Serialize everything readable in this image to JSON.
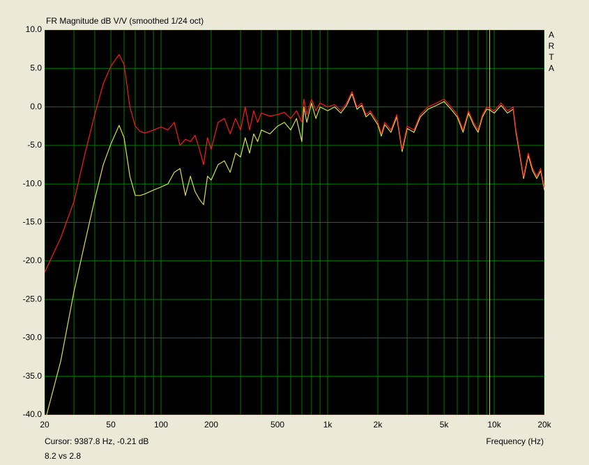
{
  "chart_data": {
    "type": "line",
    "title": "FR Magnitude dB V/V (smoothed 1/24 oct)",
    "side_label": [
      "A",
      "R",
      "T",
      "A"
    ],
    "cursor_text": "Cursor: 9387.8 Hz, -0.21 dB",
    "note": "8.2 vs 2.8",
    "xlabel": "Frequency (Hz)",
    "cursor_x": 9387.8,
    "cursor_color": "#c8c840",
    "xscale": "log",
    "grid": true,
    "grid_color": "#007a00",
    "background": "#000000",
    "xlim": [
      20,
      20000
    ],
    "ylim": [
      -40,
      10
    ],
    "xticks": [
      20,
      50,
      100,
      200,
      500,
      {
        "value": 1000,
        "label": "1k"
      },
      {
        "value": 2000,
        "label": "2k"
      },
      {
        "value": 5000,
        "label": "5k"
      },
      {
        "value": 10000,
        "label": "10k"
      },
      {
        "value": 20000,
        "label": "20k"
      }
    ],
    "xgrid": [
      30,
      40,
      60,
      70,
      80,
      90,
      300,
      400,
      600,
      700,
      800,
      900,
      3000,
      4000,
      6000,
      7000,
      8000,
      9000
    ],
    "yticks": [
      {
        "value": 10,
        "label": "10.0"
      },
      {
        "value": 5,
        "label": "5.0"
      },
      {
        "value": 0,
        "label": "0.0"
      },
      {
        "value": -5,
        "label": "-5.0"
      },
      {
        "value": -10,
        "label": "-10.0"
      },
      {
        "value": -15,
        "label": "-15.0"
      },
      {
        "value": -20,
        "label": "-20.0"
      },
      {
        "value": -25,
        "label": "-25.0"
      },
      {
        "value": -30,
        "label": "-30.0"
      },
      {
        "value": -35,
        "label": "-35.0"
      },
      {
        "value": -40,
        "label": "-40.0"
      }
    ],
    "x": [
      20,
      25,
      30,
      35,
      40,
      45,
      50,
      56,
      60,
      65,
      70,
      75,
      80,
      90,
      100,
      110,
      120,
      130,
      140,
      150,
      160,
      170,
      180,
      190,
      200,
      220,
      240,
      260,
      280,
      300,
      320,
      340,
      360,
      380,
      400,
      450,
      500,
      550,
      600,
      650,
      700,
      720,
      750,
      800,
      850,
      900,
      1000,
      1100,
      1200,
      1300,
      1400,
      1500,
      1600,
      1700,
      1800,
      2000,
      2100,
      2200,
      2400,
      2600,
      2800,
      3000,
      3300,
      3600,
      4000,
      4500,
      5000,
      5500,
      6000,
      6500,
      7000,
      7500,
      8000,
      8500,
      9000,
      9400,
      10000,
      11000,
      12000,
      13000,
      13500,
      14000,
      15000,
      16000,
      17000,
      18000,
      19000,
      20000
    ],
    "series": [
      {
        "color": "#d8e050",
        "values": [
          -41,
          -33,
          -24,
          -17.5,
          -12,
          -7.5,
          -4.8,
          -2.4,
          -4,
          -9,
          -11.5,
          -11.5,
          -11.3,
          -10.8,
          -10.4,
          -10,
          -8.5,
          -8,
          -11.5,
          -9,
          -11,
          -12,
          -12.7,
          -9,
          -9.5,
          -7.5,
          -7,
          -8.5,
          -6,
          -6.5,
          -4,
          -6,
          -3.5,
          -4.5,
          -3,
          -3.5,
          -2.5,
          -2,
          -3,
          -1.5,
          -4.5,
          0,
          -2,
          0.5,
          -1.5,
          0,
          -0.5,
          0,
          -0.8,
          0.2,
          1.7,
          -0.3,
          0.2,
          -1.3,
          -0.8,
          -2.3,
          -3.8,
          -2.3,
          -3.3,
          -1.3,
          -5.8,
          -2.8,
          -3.3,
          -1.3,
          -0.3,
          0.2,
          0.7,
          -0.3,
          -1.3,
          -3.3,
          -0.8,
          -2.3,
          -3.3,
          -1.3,
          -0.3,
          -0.4,
          -0.8,
          0.2,
          -0.8,
          -0.3,
          -3.3,
          -5.3,
          -9.3,
          -6.3,
          -8.3,
          -9.3,
          -8.3,
          -10.8
        ]
      },
      {
        "color": "#ff1a1a",
        "values": [
          -21.5,
          -17,
          -12.3,
          -6,
          -1,
          3,
          5.3,
          6.8,
          5.5,
          0,
          -2.5,
          -3.2,
          -3.4,
          -3,
          -2.6,
          -3,
          -2,
          -5,
          -4.2,
          -4.5,
          -3.7,
          -5.5,
          -7.5,
          -4,
          -5.5,
          -2,
          -1.5,
          -3.5,
          -1.5,
          -3,
          0,
          -3,
          -0.5,
          -2,
          -0.8,
          -1.2,
          -1,
          -0.7,
          -1.5,
          -0.5,
          -2,
          1,
          -1,
          1,
          -0.5,
          0.5,
          0,
          0.3,
          -0.5,
          0.5,
          2,
          0,
          0.5,
          -1,
          -0.5,
          -2,
          -3.5,
          -2,
          -3,
          -1,
          -5.5,
          -2.5,
          -3,
          -1,
          0,
          0.5,
          1,
          0,
          -1,
          -3,
          -0.5,
          -2,
          -3,
          -1,
          0,
          -0.21,
          -0.5,
          0.5,
          -0.5,
          0,
          -3,
          -5,
          -9,
          -6,
          -8,
          -9,
          -8,
          -10.5
        ]
      }
    ]
  }
}
